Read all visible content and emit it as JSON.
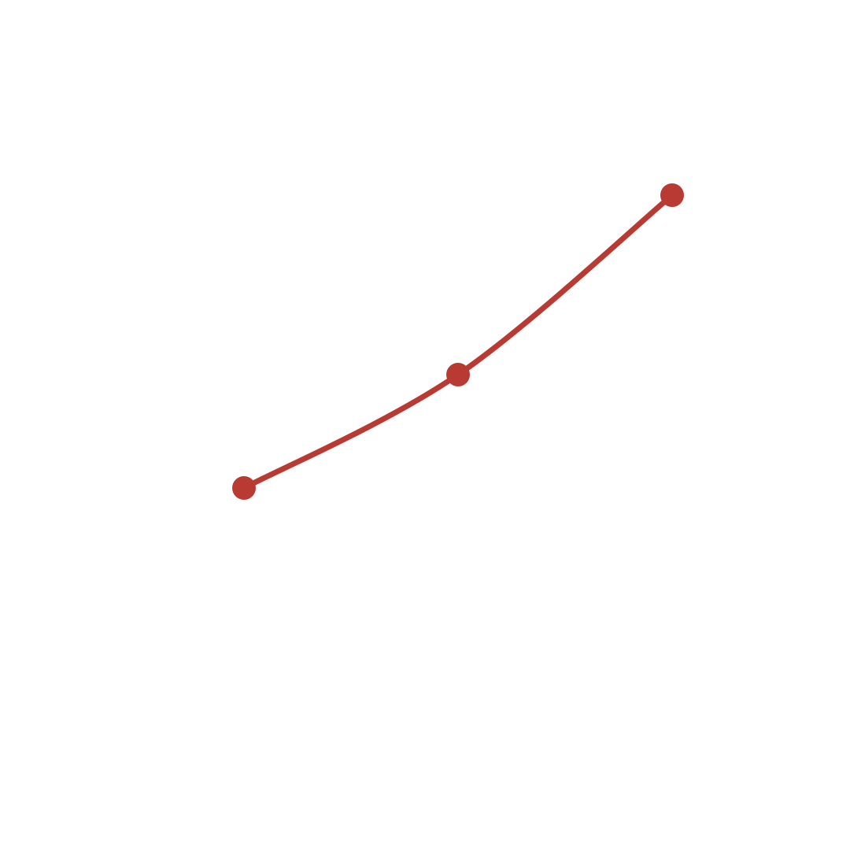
{
  "chart_data": {
    "type": "line",
    "x": [
      1,
      2,
      3
    ],
    "series": [
      {
        "values": [
          1.0,
          1.36,
          1.93
        ],
        "color": "#b83a32"
      }
    ],
    "xlim": [
      0,
      4
    ],
    "ylim": [
      0,
      2.5
    ],
    "axes_visible": false,
    "grid": false,
    "line_style": "smooth",
    "markers": true
  }
}
